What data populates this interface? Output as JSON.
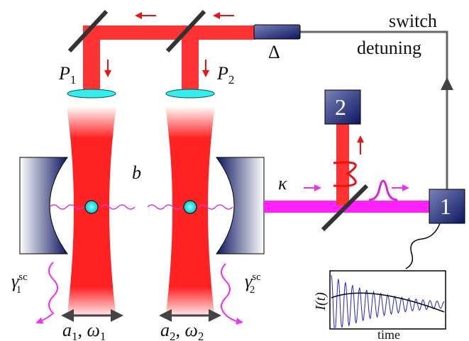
{
  "labels": {
    "switch": "switch",
    "detuning": "detuning",
    "delta": "Δ",
    "p1": {
      "base": "P",
      "sub": "1"
    },
    "p2": {
      "base": "P",
      "sub": "2"
    },
    "b": "b",
    "kappa": "κ",
    "detector2": "2",
    "detector1": "1",
    "gamma1": {
      "base": "γ",
      "sub": "1",
      "sup": "sc"
    },
    "gamma2": {
      "base": "γ",
      "sub": "2",
      "sup": "sc"
    },
    "mode1": {
      "a": "a",
      "a_sub": "1",
      "sep": ", ",
      "w": "ω",
      "w_sub": "1"
    },
    "mode2": {
      "a": "a",
      "a_sub": "2",
      "sep": ", ",
      "w": "ω",
      "w_sub": "2"
    },
    "plot_y": "I(t)",
    "plot_x": "time"
  }
}
